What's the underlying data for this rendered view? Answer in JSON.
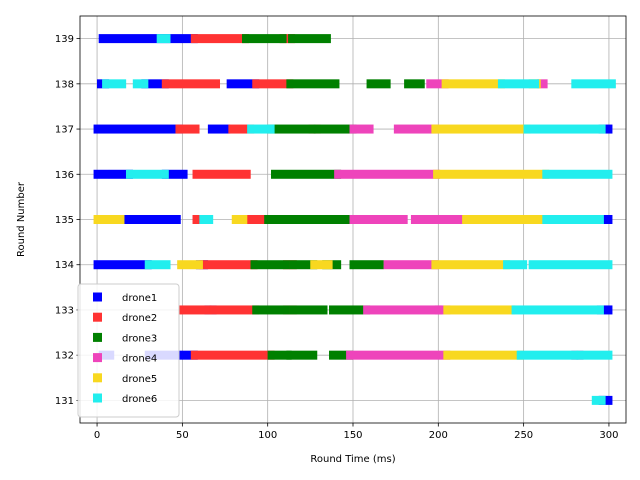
{
  "chart_data": {
    "type": "scatter",
    "title": "",
    "xlabel": "Round Time (ms)",
    "ylabel": "Round Number",
    "xlim": [
      -10,
      310
    ],
    "ylim": [
      130.5,
      139.5
    ],
    "xticks": [
      0,
      50,
      100,
      150,
      200,
      250,
      300
    ],
    "yticks": [
      131,
      132,
      133,
      134,
      135,
      136,
      137,
      138,
      139
    ],
    "grid": true,
    "legend": "lower-left",
    "series": [
      {
        "name": "drone1",
        "color": "#0000ff",
        "segments": [
          {
            "round": 139,
            "spans": [
              [
                3,
                57
              ]
            ]
          },
          {
            "round": 138,
            "spans": [
              [
                2,
                5
              ],
              [
                28,
                40
              ],
              [
                78,
                93
              ]
            ]
          },
          {
            "round": 137,
            "spans": [
              [
                0,
                48
              ],
              [
                67,
                76
              ],
              [
                296,
                300
              ]
            ]
          },
          {
            "round": 136,
            "spans": [
              [
                0,
                5
              ],
              [
                9,
                19
              ],
              [
                40,
                51
              ]
            ]
          },
          {
            "round": 135,
            "spans": [
              [
                14,
                47
              ],
              [
                295,
                300
              ]
            ]
          },
          {
            "round": 134,
            "spans": [
              [
                0,
                30
              ],
              [
                60,
                63
              ]
            ]
          },
          {
            "round": 133,
            "spans": [
              [
                65,
                68
              ],
              [
                295,
                300
              ]
            ]
          },
          {
            "round": 132,
            "spans": [
              [
                3,
                8
              ],
              [
                30,
                57
              ]
            ]
          },
          {
            "round": 131,
            "spans": [
              [
                296,
                300
              ]
            ]
          }
        ]
      },
      {
        "name": "drone2",
        "color": "#ff3333",
        "segments": [
          {
            "round": 139,
            "spans": [
              [
                57,
                87
              ],
              [
                109,
                114
              ]
            ]
          },
          {
            "round": 138,
            "spans": [
              [
                40,
                70
              ],
              [
                93,
                113
              ]
            ]
          },
          {
            "round": 137,
            "spans": [
              [
                48,
                58
              ],
              [
                79,
                90
              ],
              [
                126,
                129
              ]
            ]
          },
          {
            "round": 136,
            "spans": [
              [
                58,
                88
              ]
            ]
          },
          {
            "round": 135,
            "spans": [
              [
                58,
                62
              ],
              [
                86,
                100
              ]
            ]
          },
          {
            "round": 134,
            "spans": [
              [
                62,
                92
              ],
              [
                111,
                115
              ]
            ]
          },
          {
            "round": 133,
            "spans": [
              [
                50,
                65
              ],
              [
                68,
                93
              ],
              [
                111,
                115
              ]
            ]
          },
          {
            "round": 132,
            "spans": [
              [
                57,
                102
              ]
            ]
          }
        ]
      },
      {
        "name": "drone3",
        "color": "#008000",
        "segments": [
          {
            "round": 139,
            "spans": [
              [
                87,
                109
              ],
              [
                114,
                135
              ]
            ]
          },
          {
            "round": 138,
            "spans": [
              [
                113,
                140
              ],
              [
                160,
                170
              ],
              [
                182,
                190
              ]
            ]
          },
          {
            "round": 137,
            "spans": [
              [
                102,
                126
              ],
              [
                129,
                150
              ]
            ]
          },
          {
            "round": 136,
            "spans": [
              [
                104,
                141
              ]
            ]
          },
          {
            "round": 135,
            "spans": [
              [
                100,
                150
              ]
            ]
          },
          {
            "round": 134,
            "spans": [
              [
                92,
                111
              ],
              [
                115,
                127
              ],
              [
                134,
                141
              ],
              [
                150,
                166
              ]
            ]
          },
          {
            "round": 133,
            "spans": [
              [
                93,
                111
              ],
              [
                115,
                133
              ],
              [
                138,
                158
              ]
            ]
          },
          {
            "round": 132,
            "spans": [
              [
                102,
                112
              ],
              [
                113,
                127
              ],
              [
                138,
                148
              ]
            ]
          }
        ]
      },
      {
        "name": "drone4",
        "color": "#ee44bb",
        "segments": [
          {
            "round": 138,
            "spans": [
              [
                195,
                204
              ],
              [
                260,
                262
              ]
            ]
          },
          {
            "round": 137,
            "spans": [
              [
                150,
                160
              ],
              [
                176,
                198
              ]
            ]
          },
          {
            "round": 136,
            "spans": [
              [
                141,
                199
              ]
            ]
          },
          {
            "round": 135,
            "spans": [
              [
                150,
                180
              ],
              [
                186,
                216
              ]
            ]
          },
          {
            "round": 134,
            "spans": [
              [
                170,
                198
              ]
            ]
          },
          {
            "round": 133,
            "spans": [
              [
                158,
                200
              ],
              [
                200,
                205
              ]
            ]
          },
          {
            "round": 132,
            "spans": [
              [
                148,
                205
              ],
              [
                280,
                283
              ]
            ]
          }
        ]
      },
      {
        "name": "drone5",
        "color": "#f8d820",
        "segments": [
          {
            "round": 138,
            "spans": [
              [
                204,
                237
              ],
              [
                255,
                258
              ]
            ]
          },
          {
            "round": 137,
            "spans": [
              [
                198,
                252
              ]
            ]
          },
          {
            "round": 136,
            "spans": [
              [
                199,
                263
              ]
            ]
          },
          {
            "round": 135,
            "spans": [
              [
                0,
                14
              ],
              [
                81,
                86
              ],
              [
                216,
                263
              ]
            ]
          },
          {
            "round": 134,
            "spans": [
              [
                49,
                60
              ],
              [
                127,
                136
              ],
              [
                198,
                240
              ]
            ]
          },
          {
            "round": 133,
            "spans": [
              [
                205,
                243
              ]
            ]
          },
          {
            "round": 132,
            "spans": [
              [
                205,
                248
              ]
            ]
          }
        ]
      },
      {
        "name": "drone6",
        "color": "#22eeee",
        "segments": [
          {
            "round": 139,
            "spans": [
              [
                37,
                41
              ]
            ]
          },
          {
            "round": 138,
            "spans": [
              [
                5,
                15
              ],
              [
                23,
                28
              ],
              [
                237,
                257
              ],
              [
                280,
                302
              ]
            ]
          },
          {
            "round": 137,
            "spans": [
              [
                90,
                102
              ],
              [
                252,
                296
              ]
            ]
          },
          {
            "round": 136,
            "spans": [
              [
                19,
                40
              ],
              [
                263,
                300
              ]
            ]
          },
          {
            "round": 135,
            "spans": [
              [
                62,
                66
              ],
              [
                263,
                295
              ]
            ]
          },
          {
            "round": 134,
            "spans": [
              [
                30,
                41
              ],
              [
                240,
                250
              ],
              [
                255,
                300
              ]
            ]
          },
          {
            "round": 133,
            "spans": [
              [
                245,
                295
              ]
            ]
          },
          {
            "round": 132,
            "spans": [
              [
                248,
                280
              ],
              [
                283,
                300
              ]
            ]
          },
          {
            "round": 131,
            "spans": [
              [
                292,
                296
              ]
            ]
          }
        ]
      }
    ]
  }
}
